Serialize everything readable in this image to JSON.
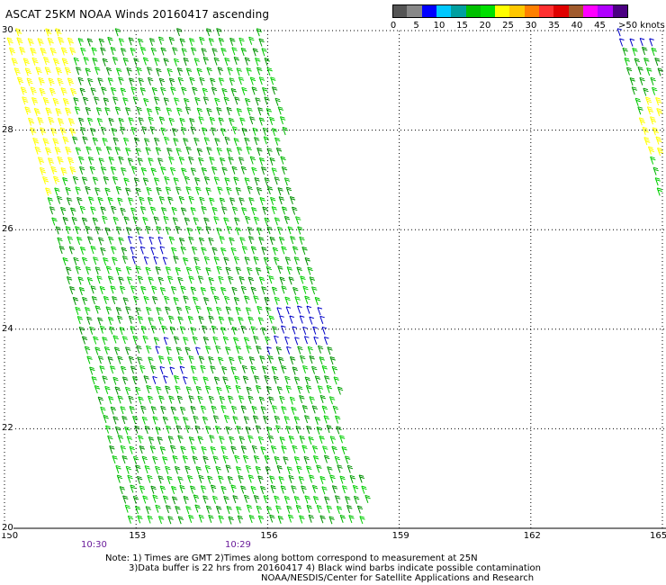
{
  "title": "ASCAT 25KM NOAA Winds 20160417 ascending",
  "legend": {
    "colors": [
      "#555555",
      "#888888",
      "#0000ff",
      "#00c8ff",
      "#00a0a0",
      "#00c000",
      "#00e000",
      "#ffff00",
      "#ffc800",
      "#ff8000",
      "#ff3030",
      "#e00000",
      "#a05a2c",
      "#ff00ff",
      "#b000ff",
      "#4b0082"
    ],
    "tick_labels": [
      "0",
      "5",
      "10",
      "15",
      "20",
      "25",
      "30",
      "35",
      "40",
      "45",
      ">50 knots"
    ]
  },
  "axes": {
    "lon_labels": [
      "150",
      "153",
      "156",
      "159",
      "162",
      "165"
    ],
    "lat_labels": [
      "30",
      "28",
      "26",
      "24",
      "22",
      "20"
    ]
  },
  "times": [
    "10:30",
    "10:29"
  ],
  "notes": {
    "line1": "Note: 1) Times are GMT 2)Times along bottom correspond to measurement at 25N",
    "line2": "3)Data buffer is 22 hrs from 20160417 4) Black wind barbs indicate possible contamination",
    "line3": "NOAA/NESDIS/Center for Satellite Applications and Research"
  }
}
